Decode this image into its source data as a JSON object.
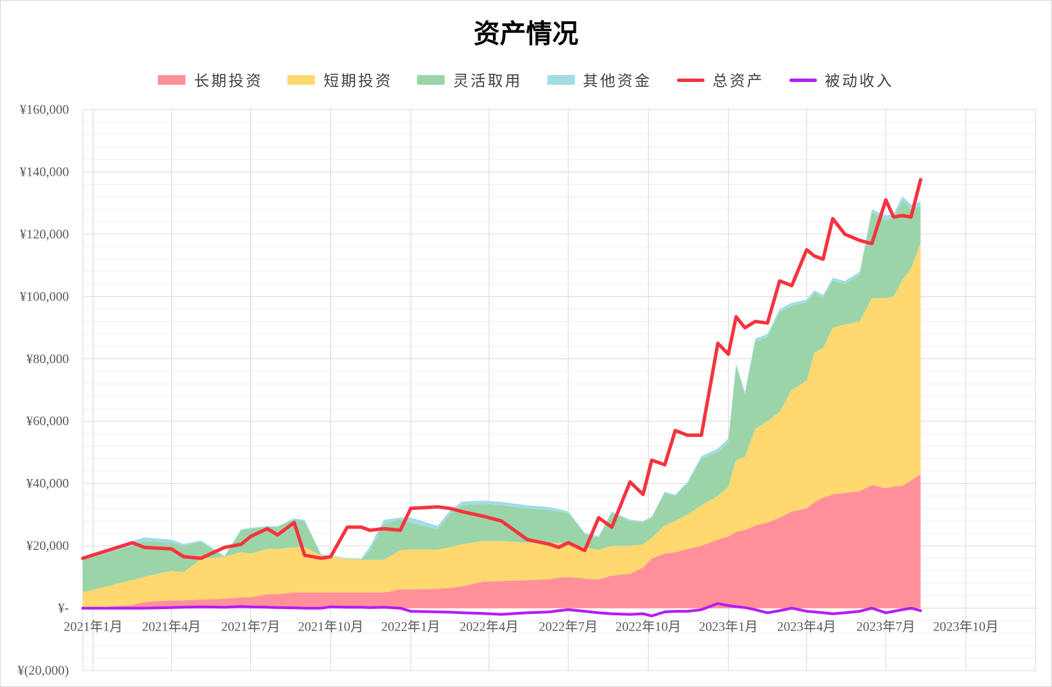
{
  "chart_data": {
    "type": "area",
    "title": "资产情况",
    "xlabel": "",
    "ylabel": "",
    "ylim": [
      -20000,
      160000
    ],
    "xlim": [
      "2020-12-20",
      "2023-12-20"
    ],
    "y_ticks": [
      -20000,
      0,
      20000,
      40000,
      60000,
      80000,
      100000,
      120000,
      140000,
      160000
    ],
    "y_tick_labels": [
      "¥(20,000)",
      "¥-",
      "¥20,000",
      "¥40,000",
      "¥60,000",
      "¥80,000",
      "¥100,000",
      "¥120,000",
      "¥140,000",
      "¥160,000"
    ],
    "x_ticks": [
      "2021-01-01",
      "2021-04-01",
      "2021-07-01",
      "2021-10-01",
      "2022-01-01",
      "2022-04-01",
      "2022-07-01",
      "2022-10-01",
      "2023-01-01",
      "2023-04-01",
      "2023-07-01",
      "2023-10-01"
    ],
    "x_tick_labels": [
      "2021年1月",
      "2021年4月",
      "2021年7月",
      "2021年10月",
      "2022年1月",
      "2022年4月",
      "2022年7月",
      "2022年10月",
      "2023年1月",
      "2023年4月",
      "2023年7月",
      "2023年10月"
    ],
    "grid": true,
    "legend_position": "top",
    "x": [
      "2020-12-20",
      "2021-02-15",
      "2021-03-01",
      "2021-04-01",
      "2021-04-15",
      "2021-05-05",
      "2021-06-01",
      "2021-06-20",
      "2021-07-01",
      "2021-07-20",
      "2021-08-01",
      "2021-08-20",
      "2021-09-01",
      "2021-09-20",
      "2021-10-01",
      "2021-10-20",
      "2021-11-05",
      "2021-11-15",
      "2021-12-01",
      "2021-12-20",
      "2022-01-01",
      "2022-02-01",
      "2022-02-15",
      "2022-03-01",
      "2022-03-25",
      "2022-04-15",
      "2022-05-15",
      "2022-06-10",
      "2022-06-20",
      "2022-07-01",
      "2022-07-20",
      "2022-08-05",
      "2022-08-20",
      "2022-09-10",
      "2022-09-25",
      "2022-10-05",
      "2022-10-20",
      "2022-11-01",
      "2022-11-15",
      "2022-12-01",
      "2022-12-20",
      "2023-01-01",
      "2023-01-10",
      "2023-01-20",
      "2023-02-01",
      "2023-02-15",
      "2023-03-01",
      "2023-03-15",
      "2023-04-01",
      "2023-04-10",
      "2023-04-20",
      "2023-05-01",
      "2023-05-15",
      "2023-06-01",
      "2023-06-15",
      "2023-07-01",
      "2023-07-10",
      "2023-07-20",
      "2023-07-30",
      "2023-08-10"
    ],
    "series": [
      {
        "name": "长期投资",
        "color": "#ff9099",
        "values": [
          0,
          1000,
          2000,
          2500,
          2500,
          2800,
          3000,
          3500,
          3500,
          4500,
          4500,
          5000,
          5000,
          5000,
          5000,
          5000,
          5000,
          5000,
          5000,
          6000,
          6000,
          6200,
          6500,
          7000,
          8500,
          8700,
          9000,
          9300,
          9800,
          10000,
          9500,
          9200,
          10500,
          11000,
          13000,
          16000,
          17500,
          18000,
          19000,
          20000,
          22000,
          23000,
          24500,
          25000,
          26500,
          27500,
          29000,
          31000,
          32000,
          34000,
          35500,
          36500,
          37000,
          37500,
          39500,
          38500,
          39000,
          39200,
          41000,
          43000
        ]
      },
      {
        "name": "短期投资",
        "color": "#ffd970",
        "values": [
          5000,
          8000,
          8000,
          9500,
          9000,
          13000,
          13500,
          14500,
          14000,
          14500,
          14500,
          14500,
          14500,
          12000,
          11500,
          10800,
          10500,
          10500,
          10500,
          12500,
          12800,
          12600,
          13000,
          13500,
          13000,
          12800,
          12000,
          11600,
          11200,
          10500,
          10000,
          9500,
          9500,
          9000,
          7500,
          6500,
          9000,
          10000,
          11000,
          13000,
          14000,
          16000,
          23000,
          23500,
          31000,
          32500,
          34000,
          39000,
          41000,
          48000,
          48000,
          53500,
          54000,
          54500,
          60000,
          61000,
          61000,
          66000,
          68000,
          74000
        ]
      },
      {
        "name": "灵活取用",
        "color": "#9bd4a8",
        "values": [
          10500,
          11000,
          11500,
          9000,
          8500,
          5500,
          0,
          7000,
          8000,
          7000,
          7000,
          9000,
          8500,
          0,
          0,
          0,
          0,
          3000,
          11500,
          10000,
          8500,
          6500,
          10500,
          12500,
          12000,
          11500,
          11000,
          10500,
          10000,
          10000,
          4200,
          4000,
          10500,
          8000,
          7000,
          6500,
          10500,
          8000,
          10000,
          15000,
          14000,
          14000,
          30000,
          20000,
          28000,
          27000,
          32000,
          27000,
          25000,
          19000,
          16000,
          15000,
          13000,
          15000,
          27500,
          25000,
          25000,
          25500,
          19000,
          12000
        ]
      },
      {
        "name": "其他资金",
        "color": "#a1dde3",
        "values": [
          800,
          1500,
          1200,
          1000,
          600,
          400,
          300,
          300,
          300,
          300,
          300,
          300,
          300,
          300,
          300,
          300,
          400,
          1200,
          1300,
          600,
          1800,
          1100,
          1300,
          1200,
          1000,
          1100,
          1000,
          1000,
          800,
          500,
          500,
          400,
          500,
          400,
          400,
          400,
          400,
          400,
          500,
          800,
          1200,
          1500,
          1000,
          800,
          1000,
          1000,
          1000,
          1000,
          1000,
          1000,
          1000,
          1000,
          1000,
          1000,
          1000,
          1500,
          1500,
          1500,
          1500,
          1500
        ]
      },
      {
        "name": "总资产",
        "color": "#f5333f",
        "type": "line",
        "values": [
          16000,
          21000,
          19500,
          19000,
          16500,
          16000,
          19500,
          20500,
          23000,
          25500,
          23500,
          27500,
          17000,
          16000,
          16500,
          26000,
          26000,
          25000,
          25500,
          25000,
          32000,
          32500,
          32000,
          31000,
          29500,
          28000,
          22000,
          20500,
          19500,
          21000,
          18500,
          29000,
          26000,
          40500,
          36500,
          47500,
          46000,
          57000,
          55500,
          55500,
          85000,
          81500,
          93500,
          90000,
          92000,
          91500,
          105000,
          103500,
          115000,
          113000,
          112000,
          125000,
          120000,
          118000,
          117000,
          131000,
          125500,
          126000,
          125500,
          137500
        ]
      },
      {
        "name": "被动收入",
        "color": "#b61cf2",
        "type": "line",
        "values": [
          0,
          0,
          0,
          200,
          300,
          400,
          300,
          500,
          400,
          300,
          200,
          100,
          0,
          0,
          400,
          300,
          300,
          200,
          300,
          0,
          -1000,
          -1200,
          -1300,
          -1500,
          -1700,
          -2000,
          -1500,
          -1200,
          -800,
          -500,
          -1000,
          -1500,
          -1800,
          -2000,
          -1800,
          -2500,
          -1200,
          -1000,
          -1000,
          -500,
          1500,
          800,
          500,
          200,
          -500,
          -1500,
          -800,
          0,
          -1000,
          -1200,
          -1500,
          -1800,
          -1500,
          -1000,
          0,
          -1500,
          -1000,
          -500,
          0,
          -800
        ]
      }
    ]
  }
}
